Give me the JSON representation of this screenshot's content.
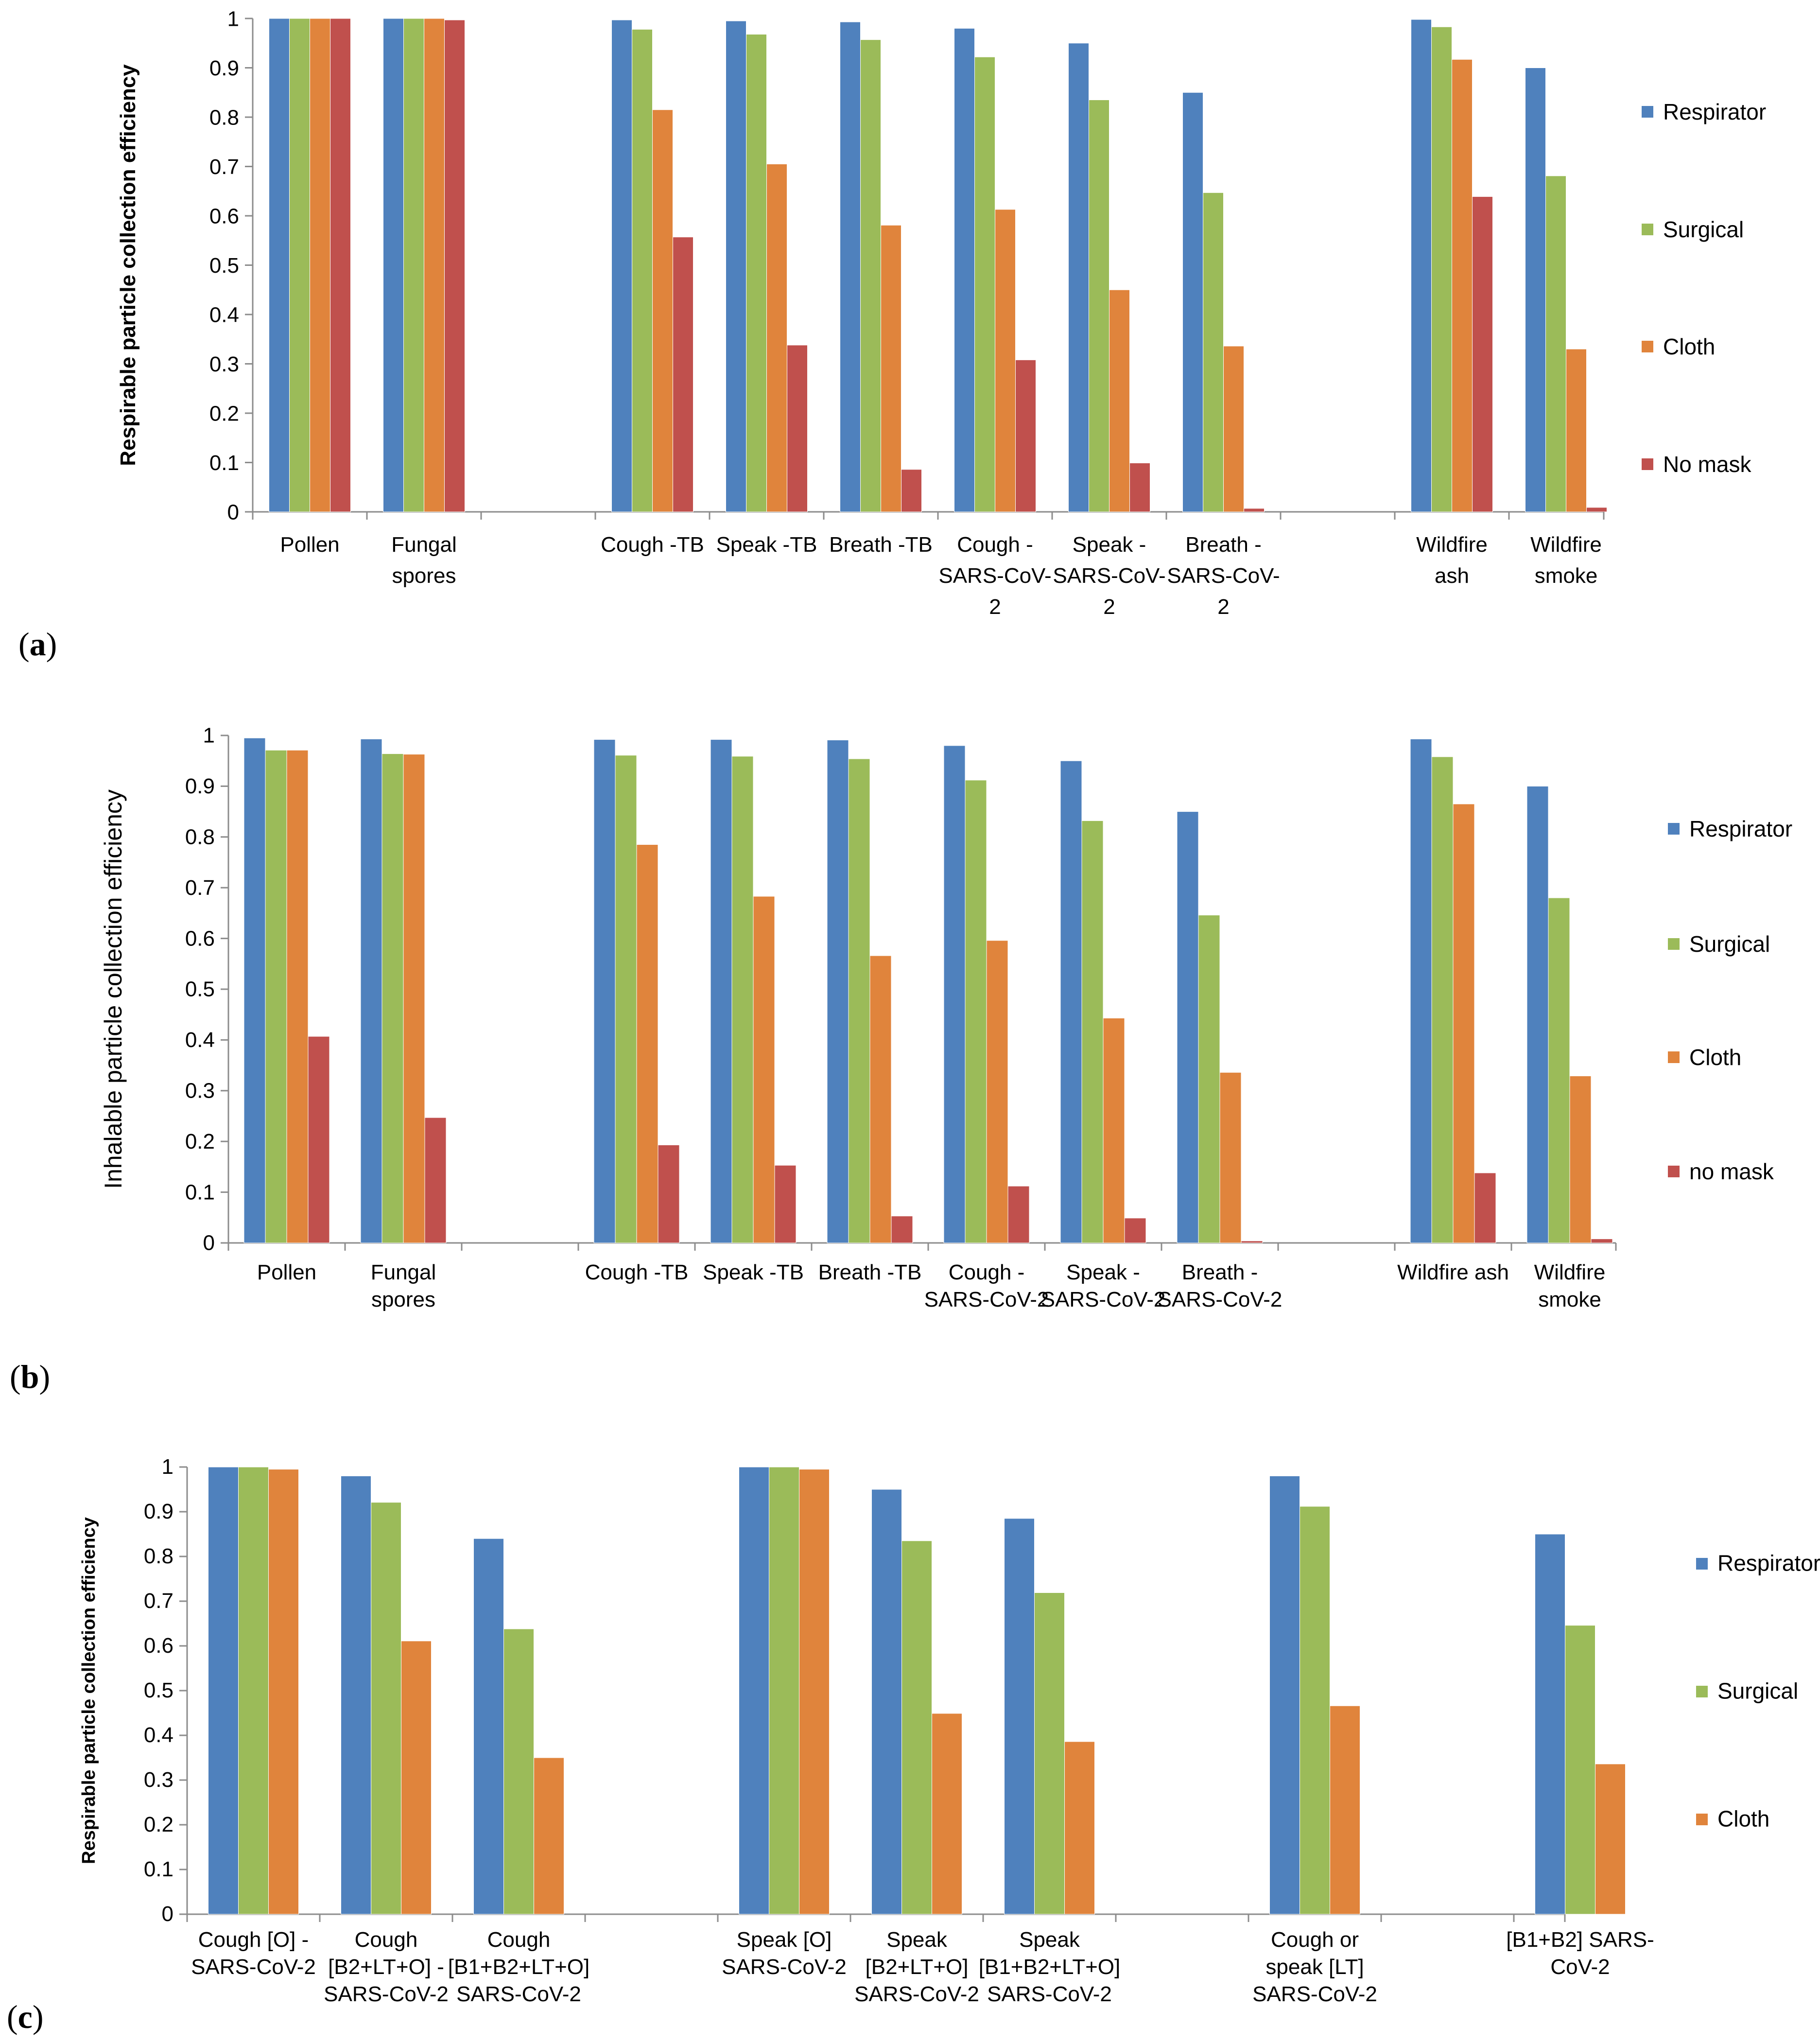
{
  "chart_data": [
    {
      "type": "bar",
      "panel_label": "(a)",
      "ylabel": "Respirable particle collection efficiency",
      "ylim": [
        0,
        1
      ],
      "yticks": [
        "0",
        "0.1",
        "0.2",
        "0.3",
        "0.4",
        "0.5",
        "0.6",
        "0.7",
        "0.8",
        "0.9",
        "1"
      ],
      "grid": false,
      "legend_position": "right",
      "categories": [
        [
          "Pollen"
        ],
        [
          "Fungal",
          "spores"
        ],
        [],
        [
          "Cough -TB"
        ],
        [
          "Speak -TB"
        ],
        [
          "Breath -TB"
        ],
        [
          "Cough -",
          "SARS-CoV-",
          "2"
        ],
        [
          "Speak -",
          "SARS-CoV-",
          "2"
        ],
        [
          "Breath -",
          "SARS-CoV-",
          "2"
        ],
        [],
        [
          "Wildfire",
          "ash"
        ],
        [
          "Wildfire",
          "smoke"
        ]
      ],
      "series": [
        {
          "name": "Respirator",
          "color": "#4F81BD",
          "values": [
            1.0,
            1.0,
            null,
            0.997,
            0.995,
            0.993,
            0.98,
            0.95,
            0.85,
            null,
            0.998,
            0.9
          ]
        },
        {
          "name": "Surgical",
          "color": "#9BBB59",
          "values": [
            1.0,
            1.0,
            null,
            0.978,
            0.968,
            0.957,
            0.922,
            0.835,
            0.647,
            null,
            0.983,
            0.681
          ]
        },
        {
          "name": "Cloth",
          "color": "#E0843C",
          "values": [
            1.0,
            1.0,
            null,
            0.815,
            0.705,
            0.581,
            0.613,
            0.45,
            0.336,
            null,
            0.917,
            0.33
          ]
        },
        {
          "name": "No mask",
          "color": "#C0504D",
          "values": [
            1.0,
            0.997,
            null,
            0.557,
            0.338,
            0.086,
            0.308,
            0.099,
            0.007,
            null,
            0.639,
            0.009
          ]
        }
      ]
    },
    {
      "type": "bar",
      "panel_label": "(b)",
      "ylabel": "Inhalable particle collection efficiency",
      "ylim": [
        0,
        1
      ],
      "yticks": [
        "0",
        "0.1",
        "0.2",
        "0.3",
        "0.4",
        "0.5",
        "0.6",
        "0.7",
        "0.8",
        "0.9",
        "1"
      ],
      "grid": false,
      "legend_position": "right",
      "categories": [
        [
          "Pollen"
        ],
        [
          "Fungal",
          "spores"
        ],
        [],
        [
          "Cough -TB"
        ],
        [
          "Speak -TB"
        ],
        [
          "Breath -TB"
        ],
        [
          "Cough -",
          "SARS-CoV-2"
        ],
        [
          "Speak -",
          "SARS-CoV-2"
        ],
        [
          "Breath -",
          "SARS-CoV-2"
        ],
        [],
        [
          "Wildfire ash"
        ],
        [
          "Wildfire",
          "smoke"
        ]
      ],
      "series": [
        {
          "name": "Respirator",
          "color": "#4F81BD",
          "values": [
            0.995,
            0.993,
            null,
            0.992,
            0.992,
            0.991,
            0.98,
            0.95,
            0.85,
            null,
            0.993,
            0.9
          ]
        },
        {
          "name": "Surgical",
          "color": "#9BBB59",
          "values": [
            0.971,
            0.964,
            null,
            0.961,
            0.959,
            0.954,
            0.912,
            0.832,
            0.646,
            null,
            0.958,
            0.68
          ]
        },
        {
          "name": "Cloth",
          "color": "#E0843C",
          "values": [
            0.971,
            0.963,
            null,
            0.785,
            0.683,
            0.566,
            0.596,
            0.443,
            0.336,
            null,
            0.865,
            0.329
          ]
        },
        {
          "name": "no mask",
          "color": "#C0504D",
          "values": [
            0.407,
            0.247,
            null,
            0.193,
            0.153,
            0.053,
            0.112,
            0.049,
            0.004,
            null,
            0.138,
            0.008
          ]
        }
      ]
    },
    {
      "type": "bar",
      "panel_label": "(c)",
      "ylabel": "Respirable particle collection efficiency",
      "ylim": [
        0,
        1
      ],
      "yticks": [
        "0",
        "0.1",
        "0.2",
        "0.3",
        "0.4",
        "0.5",
        "0.6",
        "0.7",
        "0.8",
        "0.9",
        "1"
      ],
      "grid": false,
      "legend_position": "right",
      "categories": [
        [
          "Cough [O] -",
          "SARS-CoV-2"
        ],
        [
          "Cough",
          "[B2+LT+O] -",
          "SARS-CoV-2"
        ],
        [
          "Cough",
          "[B1+B2+LT+O]",
          "SARS-CoV-2"
        ],
        [],
        [
          "Speak [O]",
          "SARS-CoV-2"
        ],
        [
          "Speak",
          "[B2+LT+O]",
          "SARS-CoV-2"
        ],
        [
          "Speak",
          "[B1+B2+LT+O]",
          "SARS-CoV-2"
        ],
        [],
        [
          "Cough or",
          "speak [LT]",
          "SARS-CoV-2"
        ],
        [],
        [
          "[B1+B2] SARS-",
          "CoV-2"
        ]
      ],
      "series": [
        {
          "name": "Respirator",
          "color": "#4F81BD",
          "values": [
            1.0,
            0.98,
            0.84,
            null,
            1.0,
            0.95,
            0.885,
            null,
            0.98,
            null,
            0.85
          ]
        },
        {
          "name": "Surgical",
          "color": "#9BBB59",
          "values": [
            1.0,
            0.921,
            0.638,
            null,
            1.0,
            0.835,
            0.719,
            null,
            0.912,
            null,
            0.646
          ]
        },
        {
          "name": "Cloth",
          "color": "#E0843C",
          "values": [
            0.995,
            0.611,
            0.35,
            null,
            0.995,
            0.449,
            0.386,
            null,
            0.466,
            null,
            0.336
          ]
        }
      ]
    }
  ]
}
